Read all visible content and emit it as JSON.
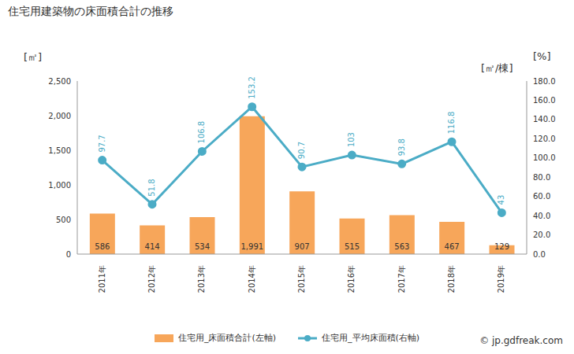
{
  "chart_data": {
    "type": "bar",
    "title": "住宅用建築物の床面積合計の推移",
    "y_label": "[㎡]",
    "y2_label": "[%]",
    "annotations": [
      "[㎡/棟]",
      "© jp.gdfreak.com"
    ],
    "categories": [
      "2011年",
      "2012年",
      "2013年",
      "2014年",
      "2015年",
      "2016年",
      "2017年",
      "2018年",
      "2019年"
    ],
    "series": [
      {
        "name": "住宅用_床面積合計(左軸)",
        "type": "bar",
        "color": "#f7a65a",
        "values": [
          586,
          414,
          534,
          1991,
          907,
          515,
          563,
          467,
          129
        ],
        "value_labels": [
          "586",
          "414",
          "534",
          "1,991",
          "907",
          "515",
          "563",
          "467",
          "129"
        ]
      },
      {
        "name": "住宅用_平均床面積(右軸)",
        "type": "line",
        "axis": "y2",
        "color": "#4bacc6",
        "marker": "circle",
        "values": [
          97.7,
          51.8,
          106.8,
          153.2,
          90.7,
          103,
          93.8,
          116.8,
          43
        ]
      }
    ],
    "ylim": [
      0,
      2500
    ],
    "yticks": [
      0,
      500,
      {
        "value": 1000,
        "label": "1,000"
      },
      {
        "value": 1500,
        "label": "1,500"
      },
      {
        "value": 2000,
        "label": "2,000"
      },
      {
        "value": 2500,
        "label": "2,500"
      }
    ],
    "y2lim": [
      0,
      180
    ],
    "y2ticks": [
      {
        "value": 0,
        "label": "0.0"
      },
      {
        "value": 20,
        "label": "20.0"
      },
      {
        "value": 40,
        "label": "40.0"
      },
      {
        "value": 60,
        "label": "60.0"
      },
      {
        "value": 80,
        "label": "80.0"
      },
      {
        "value": 100,
        "label": "100.0"
      },
      {
        "value": 120,
        "label": "120.0"
      },
      {
        "value": 140,
        "label": "140.0"
      },
      {
        "value": 160,
        "label": "160.0"
      },
      {
        "value": 180,
        "label": "180.0"
      }
    ],
    "data_labels": true,
    "legend": "bottom",
    "grid": false
  }
}
